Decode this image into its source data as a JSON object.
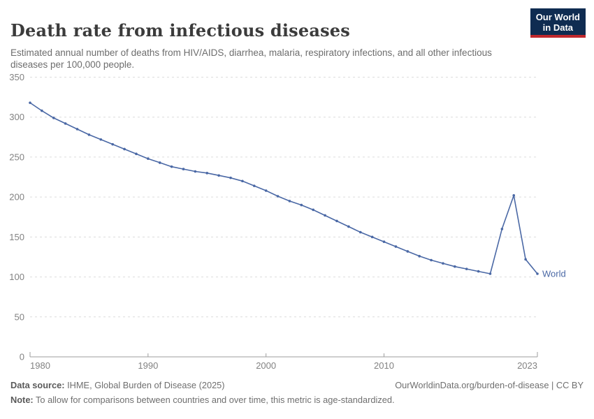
{
  "header": {
    "title": "Death rate from infectious diseases",
    "subtitle": "Estimated annual number of deaths from HIV/AIDS, diarrhea, malaria, respiratory infections, and all other infectious diseases per 100,000 people.",
    "logo": {
      "line1": "Our World",
      "line2": "in Data"
    }
  },
  "chart_data": {
    "type": "line",
    "title": "Death rate from infectious diseases",
    "xlabel": "",
    "ylabel": "",
    "xlim": [
      1980,
      2023
    ],
    "ylim": [
      0,
      350
    ],
    "xticks": [
      1980,
      1990,
      2000,
      2010,
      2023
    ],
    "yticks": [
      0,
      50,
      100,
      150,
      200,
      250,
      300,
      350
    ],
    "grid": "horizontal-dashed",
    "legend_position": "end-of-line-label",
    "x": [
      1980,
      1981,
      1982,
      1983,
      1984,
      1985,
      1986,
      1987,
      1988,
      1989,
      1990,
      1991,
      1992,
      1993,
      1994,
      1995,
      1996,
      1997,
      1998,
      1999,
      2000,
      2001,
      2002,
      2003,
      2004,
      2005,
      2006,
      2007,
      2008,
      2009,
      2010,
      2011,
      2012,
      2013,
      2014,
      2015,
      2016,
      2017,
      2018,
      2019,
      2020,
      2021,
      2022,
      2023
    ],
    "series": [
      {
        "name": "World",
        "color": "#4a68a5",
        "values": [
          318,
          308,
          299,
          292,
          285,
          278,
          272,
          266,
          260,
          254,
          248,
          243,
          238,
          235,
          232,
          230,
          227,
          224,
          220,
          214,
          208,
          201,
          195,
          190,
          184,
          177,
          170,
          163,
          156,
          150,
          144,
          138,
          132,
          126,
          121,
          117,
          113,
          110,
          107,
          104,
          160,
          202,
          122,
          104
        ]
      }
    ]
  },
  "colors": {
    "line": "#4a68a5",
    "grid": "#dcdcdc",
    "axis": "#9e9e9e",
    "tick_label": "#828282",
    "logo_bg": "#0f2c51",
    "logo_accent": "#c0282d"
  },
  "footer": {
    "data_source_label": "Data source:",
    "data_source_text": " IHME, Global Burden of Disease (2025)",
    "link_text": "OurWorldinData.org/burden-of-disease | CC BY",
    "note_label": "Note:",
    "note_text": " To allow for comparisons between countries and over time, this metric is age-standardized."
  }
}
